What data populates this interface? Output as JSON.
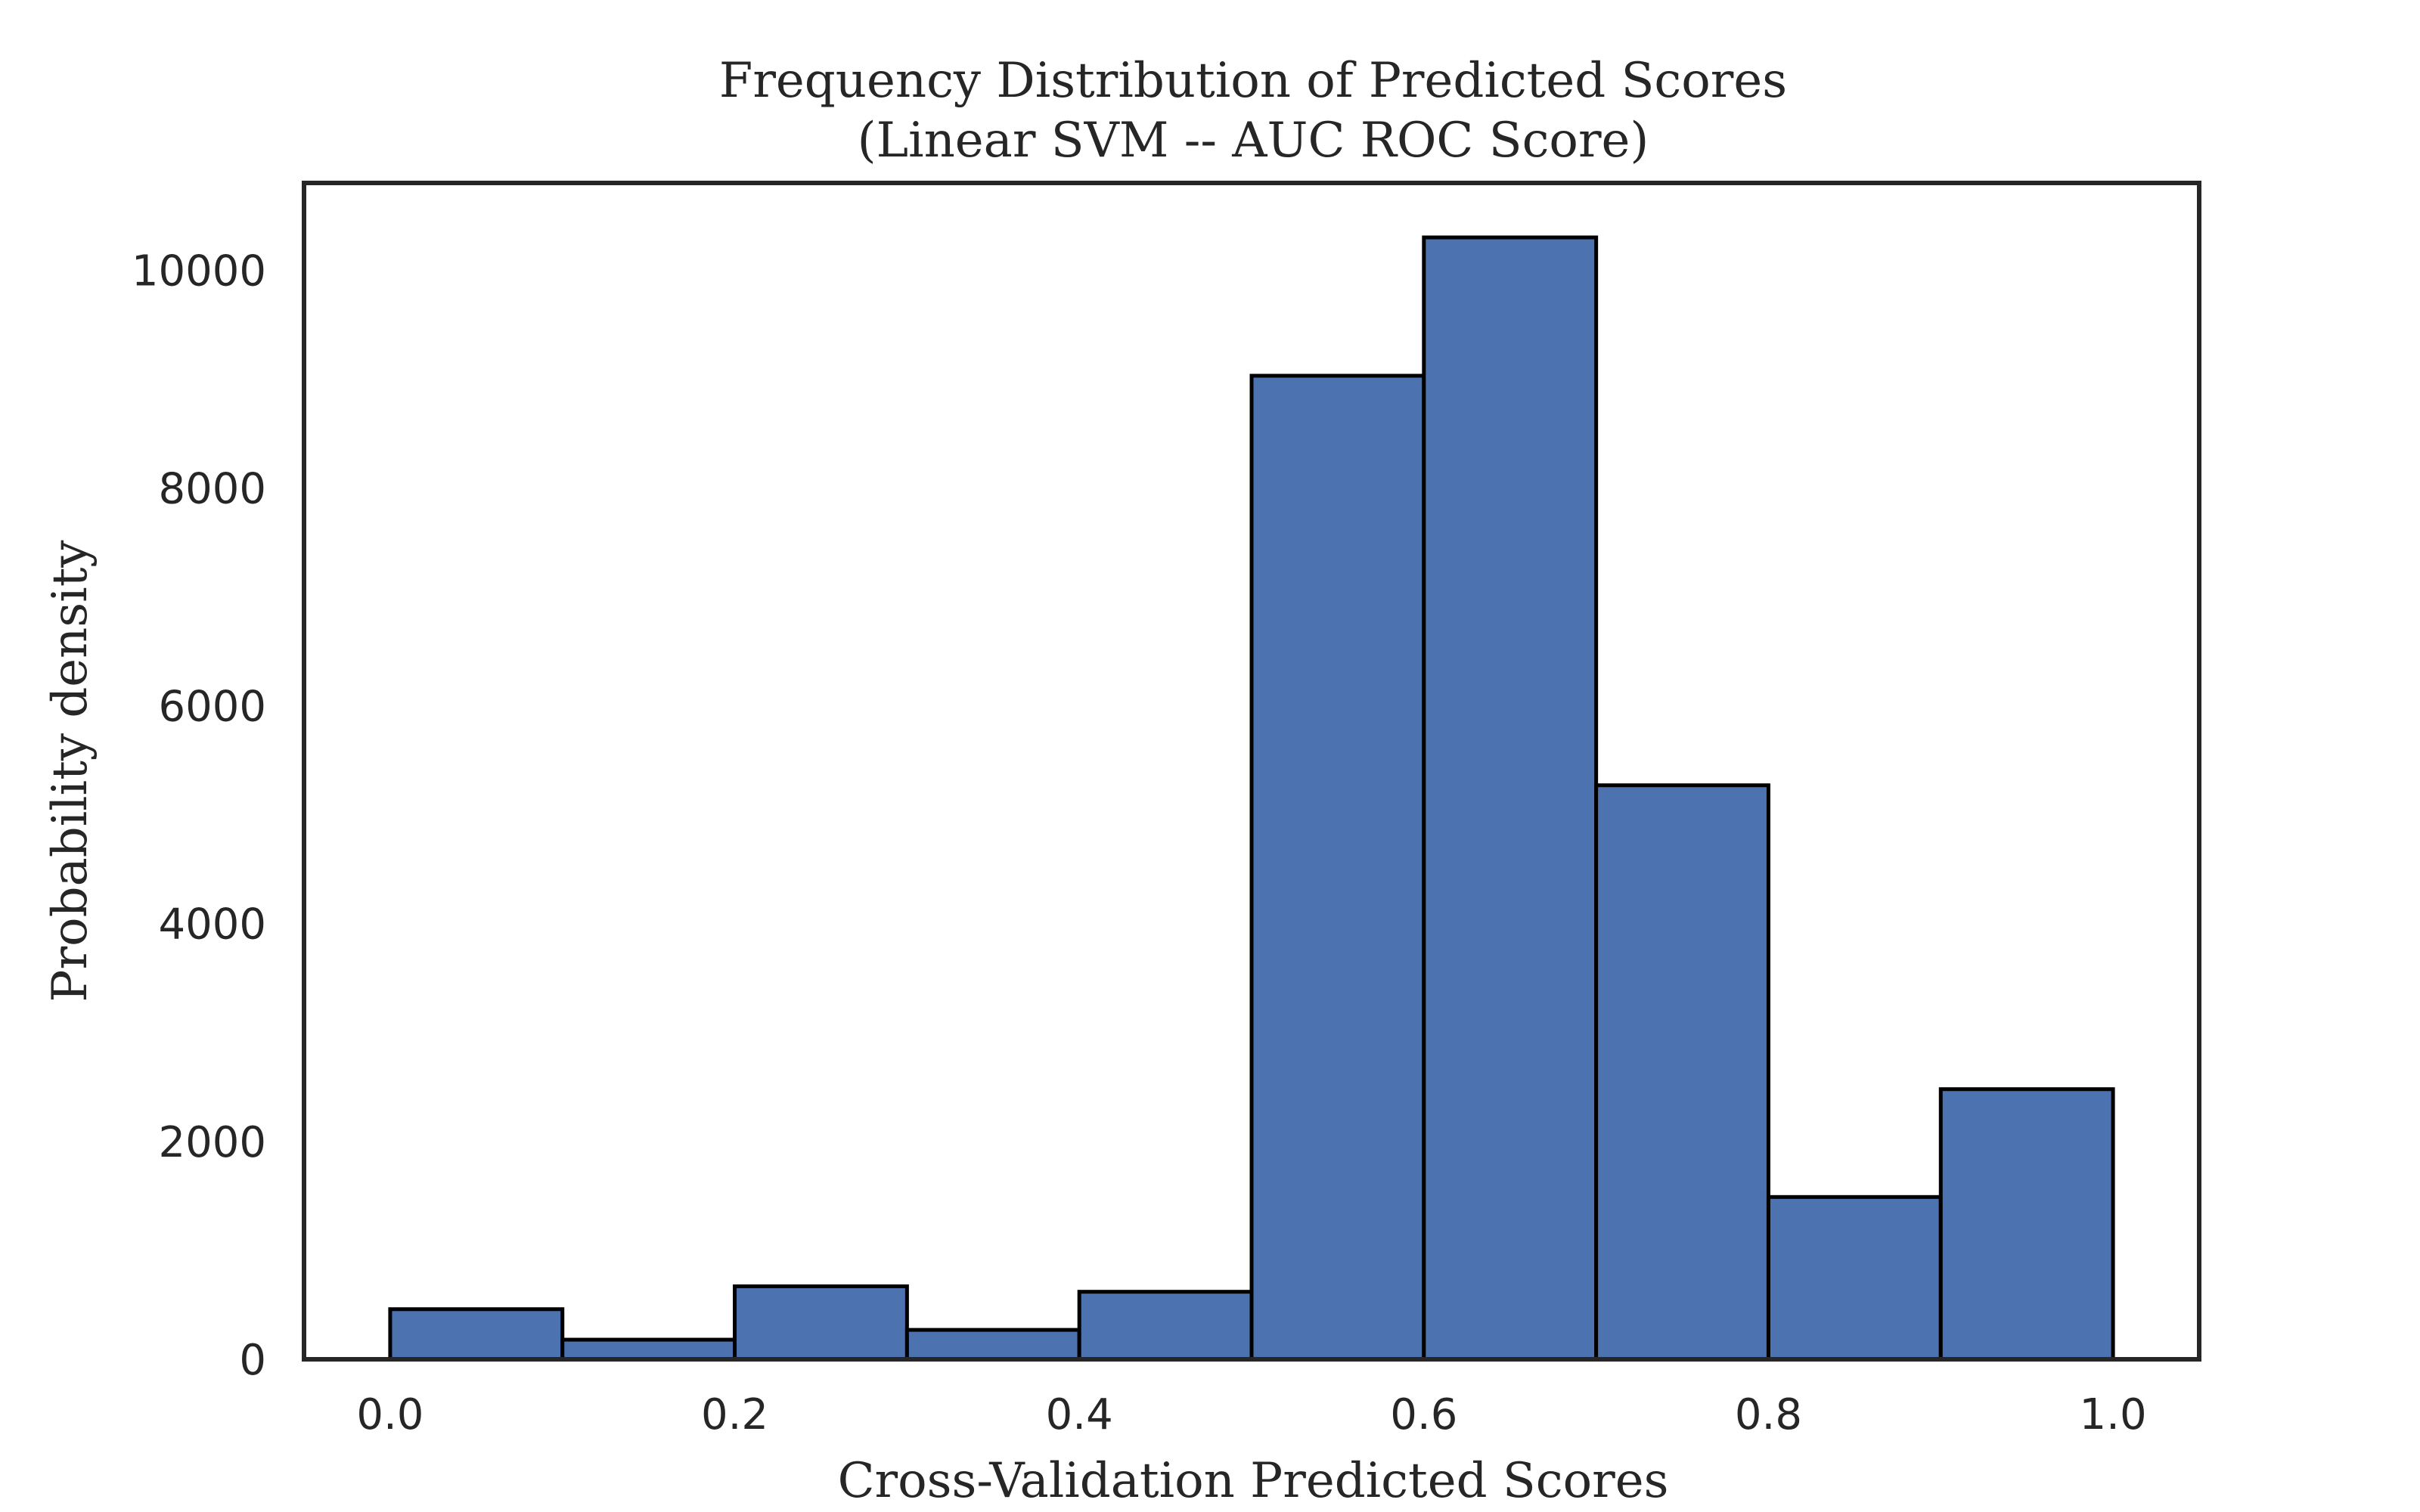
{
  "chart_data": {
    "type": "bar",
    "title": "Frequency Distribution of Predicted Scores",
    "subtitle": "(Linear SVM -- AUC ROC Score)",
    "xlabel": "Cross-Validation Predicted Scores",
    "ylabel": "Probability density",
    "bin_edges": [
      0.0,
      0.1,
      0.2,
      0.3,
      0.4,
      0.5,
      0.6,
      0.7,
      0.8,
      0.9,
      1.0
    ],
    "values": [
      460,
      180,
      670,
      270,
      620,
      9030,
      10300,
      5270,
      1490,
      2480
    ],
    "xlim": [
      -0.05,
      1.05
    ],
    "ylim": [
      0,
      10800
    ],
    "xticks": [
      "0.0",
      "0.2",
      "0.4",
      "0.6",
      "0.8",
      "1.0"
    ],
    "yticks": [
      "0",
      "2000",
      "4000",
      "6000",
      "8000",
      "10000"
    ],
    "grid": false,
    "colors": {
      "bar_fill": "#4c72b0",
      "bar_edge": "#000000",
      "frame": "#262626"
    }
  }
}
